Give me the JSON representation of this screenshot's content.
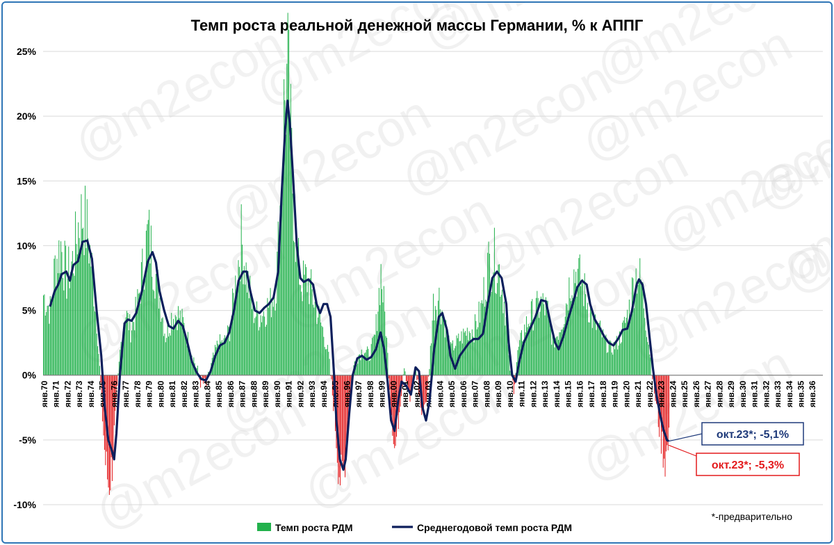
{
  "chart_data": {
    "type": "bar+line",
    "title": "Темп роста реальной денежной массы Германии, % к АППГ",
    "ylim": [
      -10,
      25
    ],
    "yticks": [
      "-10%",
      "-5%",
      "0%",
      "5%",
      "10%",
      "15%",
      "20%",
      "25%"
    ],
    "ytick_values": [
      -10,
      -5,
      0,
      5,
      10,
      15,
      20,
      25
    ],
    "x_labels": [
      "янв.70",
      "янв.71",
      "янв.72",
      "янв.73",
      "янв.74",
      "янв.75",
      "янв.76",
      "янв.77",
      "янв.78",
      "янв.79",
      "янв.80",
      "янв.81",
      "янв.82",
      "янв.83",
      "янв.84",
      "янв.85",
      "янв.86",
      "янв.87",
      "янв.88",
      "янв.89",
      "янв.90",
      "янв.91",
      "янв.92",
      "янв.93",
      "янв.94",
      "янв.95",
      "янв.96",
      "янв.97",
      "янв.98",
      "янв.99",
      "янв.00",
      "янв.01",
      "янв.02",
      "янв.03",
      "янв.04",
      "янв.05",
      "янв.06",
      "янв.07",
      "янв.08",
      "янв.09",
      "янв.10",
      "янв.11",
      "янв.12",
      "янв.13",
      "янв.14",
      "янв.15",
      "янв.16",
      "янв.17",
      "янв.18",
      "янв.19",
      "янв.20",
      "янв.21",
      "янв.22",
      "янв.23",
      "янв.24",
      "янв.25",
      "янв.26",
      "янв.27",
      "янв.28",
      "янв.29",
      "янв.30",
      "янв.31",
      "янв.32",
      "янв.33",
      "янв.34",
      "янв.35",
      "янв.36"
    ],
    "series": [
      {
        "name": "Темп роста РДМ",
        "kind": "bar",
        "color": "#22B14C",
        "negative_color": "#E31A1C",
        "anchors_year_value": [
          [
            1970.0,
            6.2
          ],
          [
            1970.6,
            5.0
          ],
          [
            1971.0,
            8.5
          ],
          [
            1971.5,
            10.0
          ],
          [
            1972.0,
            7.5
          ],
          [
            1972.6,
            9.0
          ],
          [
            1973.0,
            11.5
          ],
          [
            1973.4,
            12.5
          ],
          [
            1973.8,
            11.0
          ],
          [
            1974.2,
            8.0
          ],
          [
            1974.6,
            4.0
          ],
          [
            1975.0,
            -2.0
          ],
          [
            1975.3,
            -6.5
          ],
          [
            1975.6,
            -8.5
          ],
          [
            1975.9,
            -7.0
          ],
          [
            1976.2,
            -3.0
          ],
          [
            1976.6,
            2.0
          ],
          [
            1977.0,
            5.0
          ],
          [
            1977.5,
            3.5
          ],
          [
            1978.0,
            5.0
          ],
          [
            1978.5,
            8.0
          ],
          [
            1979.0,
            11.0
          ],
          [
            1979.5,
            8.5
          ],
          [
            1980.0,
            6.0
          ],
          [
            1980.5,
            3.0
          ],
          [
            1981.0,
            4.5
          ],
          [
            1981.5,
            4.8
          ],
          [
            1982.0,
            4.0
          ],
          [
            1982.5,
            2.5
          ],
          [
            1983.0,
            1.0
          ],
          [
            1983.5,
            -0.5
          ],
          [
            1984.0,
            -0.8
          ],
          [
            1984.5,
            1.0
          ],
          [
            1985.0,
            2.5
          ],
          [
            1985.5,
            2.5
          ],
          [
            1986.0,
            3.5
          ],
          [
            1986.5,
            7.0
          ],
          [
            1987.0,
            10.5
          ],
          [
            1987.5,
            7.5
          ],
          [
            1988.0,
            5.0
          ],
          [
            1988.5,
            4.5
          ],
          [
            1989.0,
            5.0
          ],
          [
            1989.5,
            5.5
          ],
          [
            1990.0,
            7.0
          ],
          [
            1990.4,
            14.0
          ],
          [
            1990.7,
            21.0
          ],
          [
            1991.0,
            23.0
          ],
          [
            1991.4,
            15.0
          ],
          [
            1991.8,
            9.0
          ],
          [
            1992.2,
            7.0
          ],
          [
            1992.6,
            7.5
          ],
          [
            1993.0,
            6.5
          ],
          [
            1993.5,
            5.0
          ],
          [
            1994.0,
            3.5
          ],
          [
            1994.5,
            1.5
          ],
          [
            1995.0,
            -3.0
          ],
          [
            1995.3,
            -6.5
          ],
          [
            1995.6,
            -8.5
          ],
          [
            1995.9,
            -6.5
          ],
          [
            1996.2,
            -3.0
          ],
          [
            1996.6,
            0.5
          ],
          [
            1997.0,
            1.5
          ],
          [
            1997.5,
            2.0
          ],
          [
            1998.0,
            1.5
          ],
          [
            1998.5,
            3.0
          ],
          [
            1999.0,
            8.0
          ],
          [
            1999.4,
            4.0
          ],
          [
            1999.8,
            -1.5
          ],
          [
            2000.2,
            -6.0
          ],
          [
            2000.6,
            -2.5
          ],
          [
            2001.0,
            1.0
          ],
          [
            2001.5,
            -2.0
          ],
          [
            2002.0,
            0.5
          ],
          [
            2002.5,
            -3.0
          ],
          [
            2003.0,
            -1.5
          ],
          [
            2003.5,
            5.5
          ],
          [
            2004.0,
            6.0
          ],
          [
            2004.5,
            4.0
          ],
          [
            2005.0,
            2.0
          ],
          [
            2005.5,
            2.5
          ],
          [
            2006.0,
            3.0
          ],
          [
            2006.5,
            3.5
          ],
          [
            2007.0,
            3.5
          ],
          [
            2007.6,
            5.0
          ],
          [
            2008.2,
            8.5
          ],
          [
            2008.7,
            9.0
          ],
          [
            2009.2,
            8.0
          ],
          [
            2009.7,
            5.0
          ],
          [
            2010.0,
            1.0
          ],
          [
            2010.4,
            -1.0
          ],
          [
            2010.8,
            2.0
          ],
          [
            2011.3,
            3.5
          ],
          [
            2011.8,
            4.5
          ],
          [
            2012.3,
            5.0
          ],
          [
            2012.8,
            5.5
          ],
          [
            2013.3,
            5.0
          ],
          [
            2013.8,
            2.5
          ],
          [
            2014.3,
            3.5
          ],
          [
            2014.8,
            5.0
          ],
          [
            2015.3,
            7.5
          ],
          [
            2015.8,
            8.0
          ],
          [
            2016.3,
            7.0
          ],
          [
            2016.8,
            5.5
          ],
          [
            2017.3,
            4.0
          ],
          [
            2017.8,
            3.5
          ],
          [
            2018.3,
            2.5
          ],
          [
            2018.8,
            2.0
          ],
          [
            2019.3,
            2.5
          ],
          [
            2019.8,
            3.5
          ],
          [
            2020.3,
            5.0
          ],
          [
            2020.7,
            7.0
          ],
          [
            2021.0,
            8.0
          ],
          [
            2021.4,
            7.0
          ],
          [
            2021.8,
            4.0
          ],
          [
            2022.2,
            1.0
          ],
          [
            2022.6,
            -2.0
          ],
          [
            2023.0,
            -4.5
          ],
          [
            2023.4,
            -6.5
          ],
          [
            2023.75,
            -5.3
          ]
        ]
      },
      {
        "name": "Среднегодовой темп роста РДМ",
        "kind": "line",
        "color": "#0D1F5C",
        "points_year_value": [
          [
            1970.6,
            5.3
          ],
          [
            1971.0,
            6.5
          ],
          [
            1971.3,
            7.0
          ],
          [
            1971.6,
            7.8
          ],
          [
            1972.0,
            8.0
          ],
          [
            1972.3,
            7.3
          ],
          [
            1972.6,
            8.5
          ],
          [
            1973.0,
            8.8
          ],
          [
            1973.4,
            10.3
          ],
          [
            1973.8,
            10.4
          ],
          [
            1974.2,
            9.0
          ],
          [
            1974.6,
            5.0
          ],
          [
            1975.0,
            1.5
          ],
          [
            1975.3,
            -2.5
          ],
          [
            1975.6,
            -5.0
          ],
          [
            1975.9,
            -5.8
          ],
          [
            1976.1,
            -6.5
          ],
          [
            1976.3,
            -4.5
          ],
          [
            1976.6,
            0.0
          ],
          [
            1977.0,
            4.0
          ],
          [
            1977.3,
            4.3
          ],
          [
            1977.6,
            4.2
          ],
          [
            1978.0,
            4.8
          ],
          [
            1978.5,
            6.5
          ],
          [
            1979.0,
            8.8
          ],
          [
            1979.4,
            9.5
          ],
          [
            1979.7,
            8.7
          ],
          [
            1980.0,
            6.5
          ],
          [
            1980.4,
            5.0
          ],
          [
            1980.8,
            3.8
          ],
          [
            1981.2,
            3.6
          ],
          [
            1981.6,
            4.2
          ],
          [
            1982.0,
            3.8
          ],
          [
            1982.4,
            2.5
          ],
          [
            1982.8,
            1.0
          ],
          [
            1983.2,
            0.2
          ],
          [
            1983.6,
            -0.3
          ],
          [
            1984.0,
            -0.4
          ],
          [
            1984.4,
            0.3
          ],
          [
            1984.8,
            1.5
          ],
          [
            1985.2,
            2.3
          ],
          [
            1985.6,
            2.5
          ],
          [
            1986.0,
            3.3
          ],
          [
            1986.4,
            5.0
          ],
          [
            1986.8,
            7.3
          ],
          [
            1987.2,
            8.0
          ],
          [
            1987.5,
            8.0
          ],
          [
            1987.8,
            6.5
          ],
          [
            1988.2,
            5.0
          ],
          [
            1988.6,
            4.8
          ],
          [
            1989.0,
            5.2
          ],
          [
            1989.4,
            5.5
          ],
          [
            1989.8,
            6.0
          ],
          [
            1990.2,
            8.0
          ],
          [
            1990.5,
            14.0
          ],
          [
            1990.8,
            19.0
          ],
          [
            1991.0,
            21.2
          ],
          [
            1991.2,
            19.5
          ],
          [
            1991.5,
            15.0
          ],
          [
            1991.8,
            10.0
          ],
          [
            1992.1,
            7.5
          ],
          [
            1992.4,
            7.2
          ],
          [
            1992.8,
            7.4
          ],
          [
            1993.2,
            7.0
          ],
          [
            1993.5,
            5.5
          ],
          [
            1993.8,
            4.8
          ],
          [
            1994.1,
            5.5
          ],
          [
            1994.4,
            5.5
          ],
          [
            1994.7,
            4.5
          ],
          [
            1995.0,
            0.0
          ],
          [
            1995.2,
            -3.5
          ],
          [
            1995.5,
            -6.5
          ],
          [
            1995.8,
            -7.3
          ],
          [
            1996.0,
            -6.5
          ],
          [
            1996.3,
            -3.0
          ],
          [
            1996.6,
            0.0
          ],
          [
            1997.0,
            1.3
          ],
          [
            1997.4,
            1.5
          ],
          [
            1997.8,
            1.2
          ],
          [
            1998.2,
            1.4
          ],
          [
            1998.6,
            2.0
          ],
          [
            1999.0,
            3.3
          ],
          [
            1999.3,
            2.0
          ],
          [
            1999.6,
            -0.5
          ],
          [
            1999.9,
            -3.5
          ],
          [
            2000.2,
            -4.3
          ],
          [
            2000.5,
            -2.0
          ],
          [
            2000.8,
            -0.5
          ],
          [
            2001.2,
            -0.8
          ],
          [
            2001.6,
            -1.5
          ],
          [
            2002.0,
            0.6
          ],
          [
            2002.3,
            0.3
          ],
          [
            2002.6,
            -2.5
          ],
          [
            2002.9,
            -3.5
          ],
          [
            2003.2,
            -2.0
          ],
          [
            2003.6,
            2.0
          ],
          [
            2004.0,
            4.5
          ],
          [
            2004.3,
            4.8
          ],
          [
            2004.7,
            3.5
          ],
          [
            2005.0,
            1.5
          ],
          [
            2005.4,
            0.5
          ],
          [
            2005.8,
            1.5
          ],
          [
            2006.2,
            2.0
          ],
          [
            2006.6,
            2.5
          ],
          [
            2007.0,
            2.8
          ],
          [
            2007.4,
            2.8
          ],
          [
            2007.8,
            3.2
          ],
          [
            2008.2,
            5.5
          ],
          [
            2008.6,
            7.5
          ],
          [
            2009.0,
            8.0
          ],
          [
            2009.4,
            7.5
          ],
          [
            2009.8,
            5.5
          ],
          [
            2010.0,
            2.5
          ],
          [
            2010.3,
            0.0
          ],
          [
            2010.6,
            -0.5
          ],
          [
            2010.9,
            1.0
          ],
          [
            2011.3,
            2.5
          ],
          [
            2011.8,
            3.5
          ],
          [
            2012.3,
            4.5
          ],
          [
            2012.8,
            5.8
          ],
          [
            2013.2,
            5.7
          ],
          [
            2013.6,
            4.0
          ],
          [
            2014.0,
            2.5
          ],
          [
            2014.3,
            2.0
          ],
          [
            2014.7,
            3.0
          ],
          [
            2015.1,
            4.3
          ],
          [
            2015.5,
            5.5
          ],
          [
            2015.9,
            6.8
          ],
          [
            2016.3,
            7.3
          ],
          [
            2016.7,
            7.0
          ],
          [
            2017.0,
            5.5
          ],
          [
            2017.4,
            4.3
          ],
          [
            2017.8,
            3.7
          ],
          [
            2018.2,
            3.0
          ],
          [
            2018.6,
            2.5
          ],
          [
            2019.0,
            2.3
          ],
          [
            2019.4,
            2.8
          ],
          [
            2019.8,
            3.5
          ],
          [
            2020.2,
            3.6
          ],
          [
            2020.6,
            5.0
          ],
          [
            2021.0,
            7.0
          ],
          [
            2021.2,
            7.4
          ],
          [
            2021.5,
            7.0
          ],
          [
            2021.8,
            5.5
          ],
          [
            2022.1,
            3.0
          ],
          [
            2022.4,
            0.5
          ],
          [
            2022.7,
            -1.5
          ],
          [
            2023.0,
            -3.0
          ],
          [
            2023.3,
            -4.2
          ],
          [
            2023.6,
            -5.0
          ],
          [
            2023.75,
            -5.1
          ]
        ]
      }
    ],
    "legend": [
      "Темп роста РДМ",
      "Среднегодовой темп роста РДМ"
    ],
    "legend_position": "bottom",
    "grid": true,
    "annotations": [
      {
        "text": "окт.23*; -5,1%",
        "color": "#1F3A7A",
        "series": "Среднегодовой темп роста РДМ"
      },
      {
        "text": "окт.23*; -5,3%",
        "color": "#E31A1C",
        "series": "Темп роста РДМ"
      }
    ],
    "footnote": "*-предварительно",
    "watermark": "@m2econ"
  }
}
